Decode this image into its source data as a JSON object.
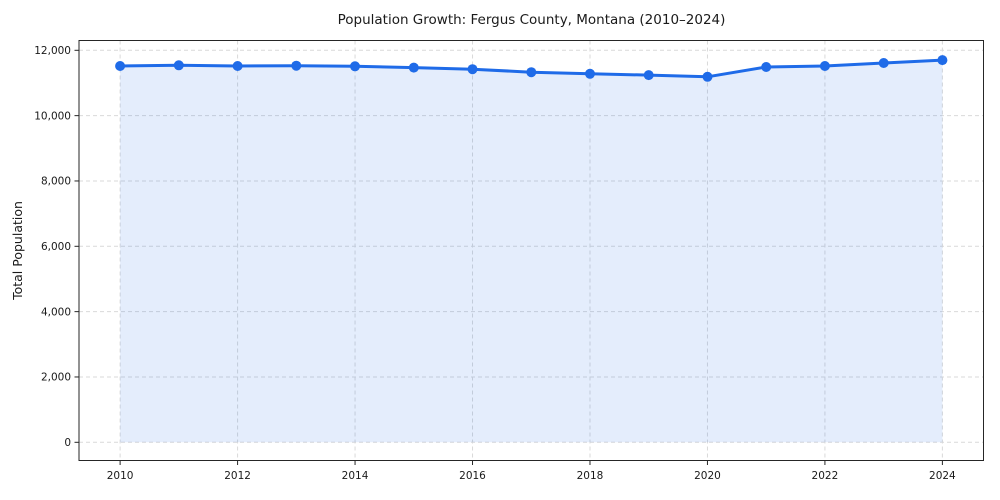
{
  "chart_data": {
    "type": "area",
    "title": "Population Growth: Fergus County, Montana (2010–2024)",
    "xlabel": "",
    "ylabel": "Total Population",
    "series_name": "Total Population",
    "x": [
      2010,
      2011,
      2012,
      2013,
      2014,
      2015,
      2016,
      2017,
      2018,
      2019,
      2020,
      2021,
      2022,
      2023,
      2024
    ],
    "values": [
      11520,
      11540,
      11520,
      11530,
      11510,
      11470,
      11420,
      11330,
      11280,
      11240,
      11190,
      11490,
      11520,
      11610,
      11700
    ],
    "xticks": [
      2010,
      2012,
      2014,
      2016,
      2018,
      2020,
      2022,
      2024
    ],
    "xtick_labels": [
      "2010",
      "2012",
      "2014",
      "2016",
      "2018",
      "2020",
      "2022",
      "2024"
    ],
    "yticks": [
      0,
      2000,
      4000,
      6000,
      8000,
      10000,
      12000
    ],
    "ytick_labels": [
      "0",
      "2,000",
      "4,000",
      "6,000",
      "8,000",
      "10,000",
      "12,000"
    ],
    "xlim": [
      2009.3,
      2024.7
    ],
    "ylim": [
      -557,
      12300
    ],
    "grid": true,
    "grid_style": "dashed",
    "legend": false,
    "marker": "circle",
    "fill_baseline": 0,
    "colors": {
      "line": "#1f6be8",
      "fill": "rgba(31,107,232,0.12)",
      "grid": "#d9d9d9",
      "axis": "#262626",
      "text": "#1a1a1a",
      "background": "#ffffff"
    }
  }
}
